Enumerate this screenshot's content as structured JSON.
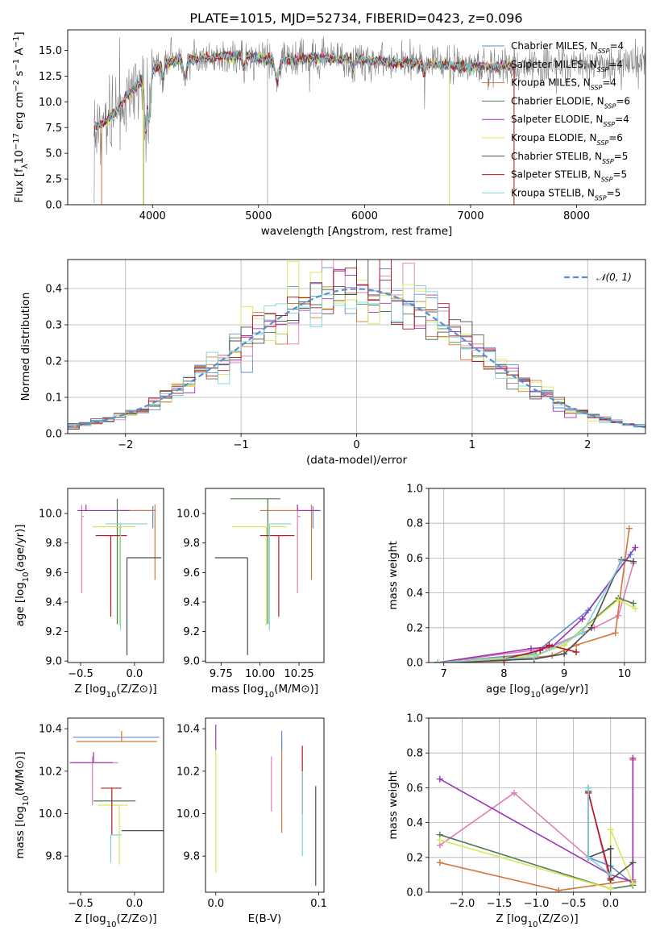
{
  "title": "PLATE=1015, MJD=52734, FIBERID=0423, z=0.096",
  "models": [
    {
      "name": "Chabrier MILES",
      "nssp": "4",
      "color": "#5b8fcf"
    },
    {
      "name": "Salpeter MILES",
      "nssp": "4",
      "color": "#e07fb4"
    },
    {
      "name": "Kroupa MILES",
      "nssp": "4",
      "color": "#d3783b"
    },
    {
      "name": "Chabrier ELODIE",
      "nssp": "6",
      "color": "#4f7b4f"
    },
    {
      "name": "Salpeter ELODIE",
      "nssp": "4",
      "color": "#9b33b8"
    },
    {
      "name": "Kroupa ELODIE",
      "nssp": "6",
      "color": "#d9e85a"
    },
    {
      "name": "Chabrier STELIB",
      "nssp": "5",
      "color": "#4d4d4d"
    },
    {
      "name": "Salpeter STELIB",
      "nssp": "5",
      "color": "#b3161c"
    },
    {
      "name": "Kroupa STELIB",
      "nssp": "5",
      "color": "#7fd3d8"
    }
  ],
  "chart_data": [
    {
      "id": "spectrum",
      "type": "line",
      "xlabel": "wavelength [Angstrom, rest frame]",
      "ylabel": "Flux [f_λ10^-17 erg cm^-2 s^-1 A^-1]",
      "xlim": [
        3200,
        8650
      ],
      "ylim": [
        0,
        17
      ],
      "xticks": [
        4000,
        5000,
        6000,
        7000,
        8000
      ],
      "yticks": [
        0.0,
        2.5,
        5.0,
        7.5,
        10.0,
        12.5,
        15.0
      ],
      "data_wavelength_range": [
        3450,
        8650
      ],
      "model_wavelength_range": [
        3450,
        7420
      ],
      "continuum": [
        [
          3450,
          7.5
        ],
        [
          3550,
          8.0
        ],
        [
          3650,
          9.0
        ],
        [
          3750,
          10.5
        ],
        [
          3850,
          11.5
        ],
        [
          3950,
          12.5
        ],
        [
          4050,
          13.5
        ],
        [
          4200,
          14.0
        ],
        [
          4400,
          14.2
        ],
        [
          4800,
          14.5
        ],
        [
          5200,
          14.0
        ],
        [
          5600,
          14.3
        ],
        [
          6000,
          14.1
        ],
        [
          6300,
          13.8
        ],
        [
          6600,
          13.7
        ],
        [
          7000,
          13.4
        ],
        [
          7500,
          13.5
        ],
        [
          8000,
          13.6
        ],
        [
          8650,
          13.8
        ]
      ],
      "legend_location": "upper right",
      "grid": false
    },
    {
      "id": "residuals",
      "type": "histogram",
      "xlabel": "(data-model)/error",
      "ylabel": "Normed distribution",
      "xlim": [
        -2.5,
        2.5
      ],
      "ylim": [
        0,
        0.48
      ],
      "xticks": [
        -2,
        -1,
        0,
        1,
        2
      ],
      "yticks": [
        0.0,
        0.1,
        0.2,
        0.3,
        0.4
      ],
      "bin_width": 0.1,
      "reference": "N(0,1)",
      "reference_label": "𝒩(0, 1)",
      "legend_location": "upper right",
      "grid": true
    },
    {
      "id": "age_vs_Z",
      "type": "errorbar",
      "xlabel": "Z [log10(Z/Z⊙)]",
      "ylabel": "age [log10(age/yr)]",
      "xlim": [
        -0.62,
        0.27
      ],
      "ylim": [
        8.99,
        10.17
      ],
      "xticks": [
        -0.5,
        0.0
      ],
      "xticklabels": [
        "−0.5",
        "0.0"
      ],
      "yticks": [
        9.0,
        9.2,
        9.4,
        9.6,
        9.8,
        10.0
      ],
      "points": [
        {
          "model": 0,
          "x": 0.17,
          "xerr": [
            0.17,
            0.03
          ],
          "y": 10.02,
          "yerr": [
            0.12,
            0.03
          ]
        },
        {
          "model": 1,
          "x": -0.49,
          "xerr": [
            0.0,
            0.02
          ],
          "y": 9.98,
          "yerr": [
            0.52,
            0.08
          ]
        },
        {
          "model": 2,
          "x": 0.19,
          "xerr": [
            0.37,
            0.0
          ],
          "y": 10.02,
          "yerr": [
            0.47,
            0.04
          ]
        },
        {
          "model": 3,
          "x": -0.16,
          "xerr": [
            0.0,
            0.0
          ],
          "y": 10.1,
          "yerr": [
            0.85,
            0.0
          ]
        },
        {
          "model": 4,
          "x": -0.45,
          "xerr": [
            0.08,
            0.41
          ],
          "y": 10.02,
          "yerr": [
            0.0,
            0.04
          ]
        },
        {
          "model": 5,
          "x": -0.14,
          "xerr": [
            0.25,
            0.15
          ],
          "y": 9.91,
          "yerr": [
            0.67,
            0.0
          ]
        },
        {
          "model": 6,
          "x": -0.07,
          "xerr": [
            0.0,
            0.32
          ],
          "y": 9.7,
          "yerr": [
            0.66,
            0.0
          ]
        },
        {
          "model": 7,
          "x": -0.22,
          "xerr": [
            0.14,
            0.15
          ],
          "y": 9.85,
          "yerr": [
            0.55,
            0.0
          ]
        },
        {
          "model": 8,
          "x": -0.13,
          "xerr": [
            0.14,
            0.25
          ],
          "y": 9.93,
          "yerr": [
            0.72,
            0.0
          ]
        }
      ]
    },
    {
      "id": "age_vs_mass",
      "type": "errorbar",
      "xlabel": "mass [log10(M/M⊙)]",
      "ylabel": "",
      "xlim": [
        9.65,
        10.41
      ],
      "ylim": [
        8.99,
        10.17
      ],
      "xticks": [
        9.75,
        10.0,
        10.25
      ],
      "xticklabels": [
        "9.75",
        "10.00",
        "10.25"
      ],
      "yticks": [
        9.0,
        9.2,
        9.4,
        9.6,
        9.8,
        10.0
      ],
      "points": [
        {
          "model": 0,
          "x": 10.34,
          "xerr": [
            0.0,
            0.05
          ],
          "y": 10.02,
          "yerr": [
            0.12,
            0.03
          ]
        },
        {
          "model": 1,
          "x": 10.24,
          "xerr": [
            0.0,
            0.02
          ],
          "y": 9.98,
          "yerr": [
            0.52,
            0.08
          ]
        },
        {
          "model": 2,
          "x": 10.33,
          "xerr": [
            0.33,
            0.0
          ],
          "y": 10.02,
          "yerr": [
            0.47,
            0.04
          ]
        },
        {
          "model": 3,
          "x": 10.05,
          "xerr": [
            0.24,
            0.08
          ],
          "y": 10.1,
          "yerr": [
            0.85,
            0.0
          ]
        },
        {
          "model": 4,
          "x": 10.24,
          "xerr": [
            0.0,
            0.14
          ],
          "y": 10.02,
          "yerr": [
            0.0,
            0.04
          ]
        },
        {
          "model": 5,
          "x": 10.04,
          "xerr": [
            0.22,
            0.13
          ],
          "y": 9.91,
          "yerr": [
            0.67,
            0.0
          ]
        },
        {
          "model": 6,
          "x": 9.92,
          "xerr": [
            0.21,
            0.0
          ],
          "y": 9.7,
          "yerr": [
            0.66,
            0.0
          ]
        },
        {
          "model": 7,
          "x": 10.12,
          "xerr": [
            0.12,
            0.1
          ],
          "y": 9.85,
          "yerr": [
            0.55,
            0.0
          ]
        },
        {
          "model": 8,
          "x": 10.06,
          "xerr": [
            0.0,
            0.14
          ],
          "y": 9.93,
          "yerr": [
            0.72,
            0.0
          ]
        }
      ]
    },
    {
      "id": "weight_vs_age",
      "type": "line",
      "xlabel": "age [log10(age/yr)]",
      "ylabel": "mass weight",
      "xlim": [
        6.75,
        10.35
      ],
      "ylim": [
        0,
        1
      ],
      "xticks": [
        7,
        8,
        9,
        10
      ],
      "yticks": [
        0.0,
        0.2,
        0.4,
        0.6,
        0.8,
        1.0
      ],
      "grid": true,
      "series": [
        {
          "model": 0,
          "x": [
            6.9,
            8.5,
            9.4,
            10.1
          ],
          "y": [
            0.0,
            0.05,
            0.3,
            0.62
          ]
        },
        {
          "model": 1,
          "x": [
            6.9,
            8.7,
            9.5,
            9.9,
            10.15
          ],
          "y": [
            0.0,
            0.08,
            0.2,
            0.27,
            0.57
          ]
        },
        {
          "model": 2,
          "x": [
            6.9,
            8.0,
            8.8,
            9.2,
            9.85,
            10.08
          ],
          "y": [
            0.0,
            0.01,
            0.04,
            0.1,
            0.17,
            0.77
          ]
        },
        {
          "model": 3,
          "x": [
            6.9,
            8.5,
            9.0,
            9.9,
            10.15
          ],
          "y": [
            0.0,
            0.04,
            0.1,
            0.37,
            0.34
          ]
        },
        {
          "model": 4,
          "x": [
            6.9,
            8.45,
            8.8,
            9.3,
            10.18
          ],
          "y": [
            0.0,
            0.08,
            0.09,
            0.25,
            0.66
          ]
        },
        {
          "model": 5,
          "x": [
            6.9,
            8.5,
            9.0,
            9.9,
            10.18
          ],
          "y": [
            0.0,
            0.04,
            0.1,
            0.36,
            0.31
          ]
        },
        {
          "model": 6,
          "x": [
            6.9,
            8.5,
            9.0,
            9.45,
            9.95,
            10.15
          ],
          "y": [
            0.0,
            0.02,
            0.05,
            0.2,
            0.59,
            0.58
          ]
        },
        {
          "model": 7,
          "x": [
            6.9,
            8.0,
            8.6,
            8.75,
            9.2
          ],
          "y": [
            0.0,
            0.02,
            0.07,
            0.1,
            0.06
          ]
        },
        {
          "model": 8,
          "x": [
            6.9,
            8.5,
            9.3,
            9.95
          ],
          "y": [
            0.0,
            0.03,
            0.17,
            0.58
          ]
        }
      ]
    },
    {
      "id": "mass_vs_Z",
      "type": "errorbar",
      "xlabel": "Z [log10(Z/Z⊙)]",
      "ylabel": "mass [log10(M/M⊙)]",
      "xlim": [
        -0.62,
        0.27
      ],
      "ylim": [
        9.63,
        10.45
      ],
      "xticks": [
        -0.5,
        0.0
      ],
      "xticklabels": [
        "−0.5",
        "0.0"
      ],
      "yticks": [
        9.8,
        10.0,
        10.2,
        10.4
      ],
      "points": [
        {
          "model": 0,
          "x": -0.12,
          "xerr": [
            0.45,
            0.35
          ],
          "y": 10.36,
          "yerr": [
            0.0,
            0.0
          ]
        },
        {
          "model": 1,
          "x": -0.39,
          "xerr": [
            0.2,
            0.24
          ],
          "y": 10.24,
          "yerr": [
            0.2,
            0.03
          ]
        },
        {
          "model": 2,
          "x": -0.12,
          "xerr": [
            0.42,
            0.33
          ],
          "y": 10.34,
          "yerr": [
            0.0,
            0.05
          ]
        },
        {
          "model": 3,
          "x": -0.14,
          "xerr": [
            0.24,
            0.15
          ],
          "y": 10.06,
          "yerr": [
            0.0,
            0.0
          ]
        },
        {
          "model": 4,
          "x": -0.38,
          "xerr": [
            0.22,
            0.18
          ],
          "y": 10.24,
          "yerr": [
            0.0,
            0.05
          ]
        },
        {
          "model": 5,
          "x": -0.14,
          "xerr": [
            0.2,
            0.08
          ],
          "y": 10.04,
          "yerr": [
            0.28,
            0.0
          ]
        },
        {
          "model": 6,
          "x": 0.06,
          "xerr": [
            0.18,
            0.25
          ],
          "y": 9.92,
          "yerr": [
            0.0,
            0.0
          ]
        },
        {
          "model": 7,
          "x": -0.21,
          "xerr": [
            0.1,
            0.09
          ],
          "y": 10.12,
          "yerr": [
            0.22,
            0.0
          ]
        },
        {
          "model": 8,
          "x": -0.22,
          "xerr": [
            0.0,
            0.1
          ],
          "y": 9.9,
          "yerr": [
            0.13,
            0.0
          ]
        }
      ]
    },
    {
      "id": "mass_vs_ebv",
      "type": "errorbar",
      "xlabel": "E(B-V)",
      "ylabel": "",
      "xlim": [
        -0.01,
        0.105
      ],
      "ylim": [
        9.63,
        10.45
      ],
      "xticks": [
        0.0,
        0.1
      ],
      "xticklabels": [
        "0.0",
        "0.1"
      ],
      "yticks": [
        9.8,
        10.0,
        10.2,
        10.4
      ],
      "points": [
        {
          "model": 0,
          "x": 0.0,
          "y": 9.75,
          "yerr": [
            0.0,
            0.0
          ]
        },
        {
          "model": 1,
          "x": 0.0,
          "y": 9.75,
          "yerr": [
            0.0,
            0.0
          ]
        },
        {
          "model": 2,
          "x": 0.0,
          "y": 9.75,
          "yerr": [
            0.0,
            0.0
          ]
        },
        {
          "model": 3,
          "x": 0.0,
          "y": 9.75,
          "yerr": [
            0.0,
            0.0
          ]
        },
        {
          "model": 4,
          "x": 0.0,
          "y": 10.3,
          "yerr": [
            0.0,
            0.12
          ]
        },
        {
          "model": 5,
          "x": 0.0,
          "y": 10.05,
          "yerr": [
            0.33,
            0.25
          ]
        },
        {
          "model": 6,
          "x": 0.0,
          "y": 9.75,
          "yerr": [
            0.0,
            0.0
          ]
        },
        {
          "model": 7,
          "x": 0.0,
          "y": 9.75,
          "yerr": [
            0.0,
            0.0
          ]
        },
        {
          "model": 8,
          "x": 0.0,
          "y": 9.75,
          "yerr": [
            0.0,
            0.0
          ]
        },
        {
          "model": 1,
          "x": 0.054,
          "y": 10.1,
          "yerr": [
            0.09,
            0.17
          ]
        },
        {
          "model": 2,
          "x": 0.064,
          "y": 10.15,
          "yerr": [
            0.24,
            0.2
          ]
        },
        {
          "model": 0,
          "x": 0.064,
          "y": 10.3,
          "yerr": [
            0.0,
            0.09
          ]
        },
        {
          "model": 7,
          "x": 0.084,
          "y": 10.2,
          "yerr": [
            0.2,
            0.12
          ]
        },
        {
          "model": 8,
          "x": 0.084,
          "y": 10.0,
          "yerr": [
            0.2,
            0.2
          ]
        },
        {
          "model": 6,
          "x": 0.097,
          "y": 9.9,
          "yerr": [
            0.24,
            0.23
          ]
        }
      ]
    },
    {
      "id": "weight_vs_Z",
      "type": "line",
      "xlabel": "Z [log10(Z/Z⊙)]",
      "ylabel": "mass weight",
      "xlim": [
        -2.45,
        0.47
      ],
      "ylim": [
        0,
        1
      ],
      "xticks": [
        -2.0,
        -1.5,
        -1.0,
        -0.5,
        0.0
      ],
      "xticklabels": [
        "−2.0",
        "−1.5",
        "−1.0",
        "−0.5",
        "0.0"
      ],
      "yticks": [
        0.0,
        0.2,
        0.4,
        0.6,
        0.8,
        1.0
      ],
      "grid": true,
      "series": [
        {
          "model": 0,
          "x": [
            -0.3,
            -0.3,
            0.0,
            0.3
          ],
          "y": [
            0.6,
            0.2,
            0.15,
            0.05
          ]
        },
        {
          "model": 1,
          "x": [
            -2.3,
            -1.3,
            -0.3,
            -0.3,
            0.0
          ],
          "y": [
            0.27,
            0.57,
            0.2,
            0.58,
            0.05
          ]
        },
        {
          "model": 2,
          "x": [
            -2.3,
            -0.7,
            0.3,
            0.3
          ],
          "y": [
            0.17,
            0.01,
            0.07,
            0.76
          ]
        },
        {
          "model": 3,
          "x": [
            -2.3,
            0.0,
            0.3
          ],
          "y": [
            0.33,
            0.02,
            0.04
          ]
        },
        {
          "model": 4,
          "x": [
            -2.3,
            0.0,
            0.3,
            0.3
          ],
          "y": [
            0.65,
            0.1,
            0.06,
            0.77
          ]
        },
        {
          "model": 5,
          "x": [
            -2.3,
            0.0,
            0.0,
            0.3
          ],
          "y": [
            0.3,
            0.02,
            0.36,
            0.05
          ]
        },
        {
          "model": 6,
          "x": [
            -0.3,
            -0.3,
            0.0,
            0.0,
            0.3
          ],
          "y": [
            0.58,
            0.2,
            0.25,
            0.07,
            0.17
          ]
        },
        {
          "model": 7,
          "x": [
            -0.3,
            0.0
          ],
          "y": [
            0.57,
            0.08
          ]
        },
        {
          "model": 8,
          "x": [
            -0.3,
            -0.3,
            0.0
          ],
          "y": [
            0.6,
            0.2,
            0.1
          ]
        }
      ]
    }
  ]
}
